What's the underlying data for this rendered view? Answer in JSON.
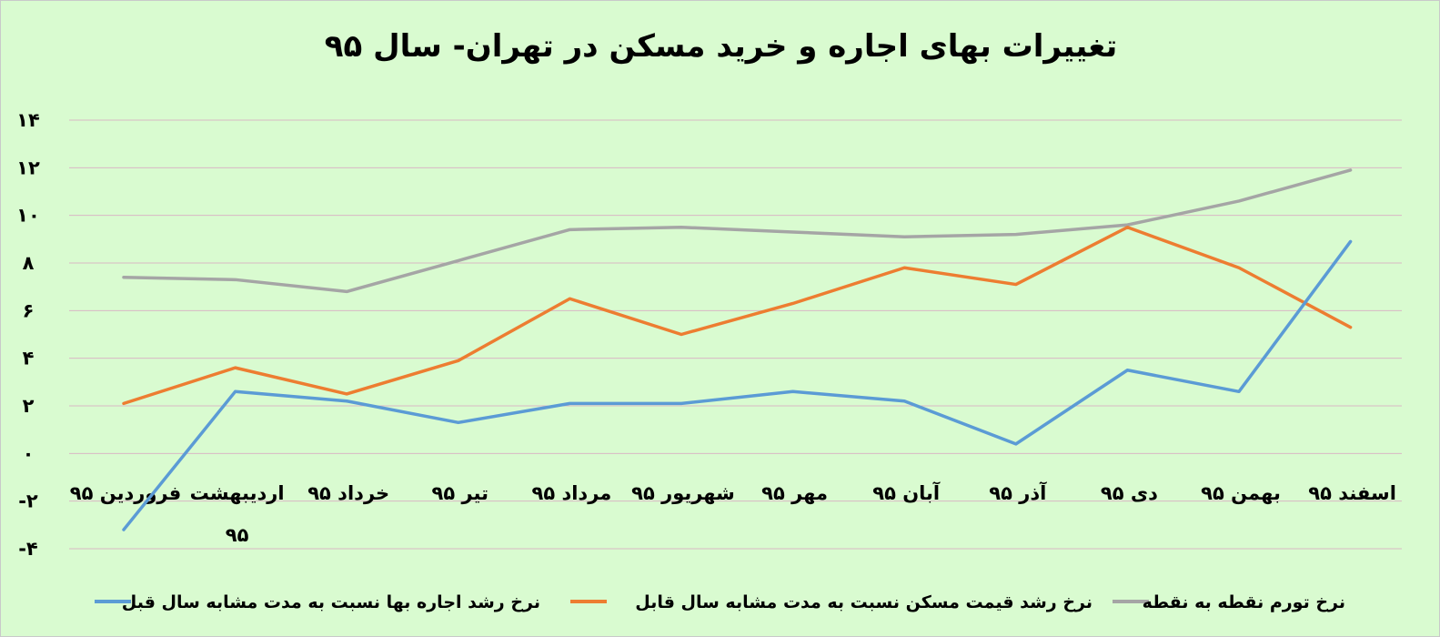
{
  "chart_data": {
    "type": "line",
    "title": "تغییرات بهای اجاره و خرید مسکن در تهران- سال ۹۵",
    "categories": [
      [
        "فروردین ۹۵"
      ],
      [
        "اردیبهشت",
        "۹۵"
      ],
      [
        "خرداد ۹۵"
      ],
      [
        "تیر ۹۵"
      ],
      [
        "مرداد ۹۵"
      ],
      [
        "شهریور ۹۵"
      ],
      [
        "مهر ۹۵"
      ],
      [
        "آبان ۹۵"
      ],
      [
        "آذر ۹۵"
      ],
      [
        "دی ۹۵"
      ],
      [
        "بهمن ۹۵"
      ],
      [
        "اسفند ۹۵"
      ]
    ],
    "y_ticks": [
      {
        "value": 14,
        "label": "۱۴"
      },
      {
        "value": 12,
        "label": "۱۲"
      },
      {
        "value": 10,
        "label": "۱۰"
      },
      {
        "value": 8,
        "label": "۸"
      },
      {
        "value": 6,
        "label": "۶"
      },
      {
        "value": 4,
        "label": "۴"
      },
      {
        "value": 2,
        "label": "۲"
      },
      {
        "value": 0,
        "label": "۰"
      },
      {
        "value": -2,
        "label": "-۲"
      },
      {
        "value": -4,
        "label": "-۴"
      }
    ],
    "ylim": [
      -4,
      14
    ],
    "grid": true,
    "legend_position": "bottom",
    "series": [
      {
        "name": "نرخ رشد اجاره بها نسبت به مدت مشابه سال قبل",
        "color": "#5b9bd5",
        "values": [
          -3.2,
          2.6,
          2.2,
          1.3,
          2.1,
          2.1,
          2.6,
          2.2,
          0.4,
          3.5,
          2.6,
          8.9
        ]
      },
      {
        "name": "نرخ رشد قیمت مسکن نسبت به مدت مشابه سال قابل",
        "color": "#ed7d31",
        "values": [
          2.1,
          3.6,
          2.5,
          3.9,
          6.5,
          5.0,
          6.3,
          7.8,
          7.1,
          9.5,
          7.8,
          5.3
        ]
      },
      {
        "name": "نرخ تورم نقطه به نقطه",
        "color": "#a5a5a5",
        "values": [
          7.4,
          7.3,
          6.8,
          8.1,
          9.4,
          9.5,
          9.3,
          9.1,
          9.2,
          9.6,
          10.6,
          11.9
        ]
      }
    ]
  }
}
